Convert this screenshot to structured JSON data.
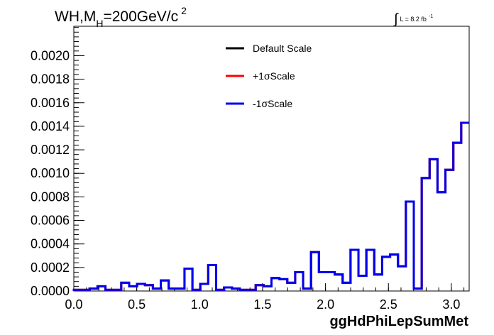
{
  "chart_data": {
    "type": "histogram",
    "title": {
      "prefix": "WH,M",
      "subscript": "H",
      "rest": "=200GeV/c",
      "superscript": "2"
    },
    "luminosity": {
      "integral_symbol": "∫",
      "text": "L = 8.2 fb",
      "superscript": "-1"
    },
    "xlabel": "ggHdPhiLepSumMet",
    "ylabel": "",
    "xlim": [
      0,
      3.1416
    ],
    "ylim": [
      0,
      0.00225
    ],
    "x_ticks": [
      "0.0",
      "0.5",
      "1.0",
      "1.5",
      "2.0",
      "2.5",
      "3.0"
    ],
    "y_ticks": [
      "0.0000",
      "0.0002",
      "0.0004",
      "0.0006",
      "0.0008",
      "0.0010",
      "0.0012",
      "0.0014",
      "0.0016",
      "0.0018",
      "0.0020"
    ],
    "bin_edges_start": 0,
    "bin_width": 0.06283,
    "n_bins": 50,
    "series": [
      {
        "name": "Default Scale",
        "color": "#000000",
        "values": [
          1e-05,
          1e-05,
          2e-05,
          4e-05,
          1e-05,
          1e-05,
          7e-05,
          4e-05,
          6e-05,
          5e-05,
          2e-05,
          9e-05,
          2e-05,
          2e-05,
          0.00019,
          1e-05,
          6e-05,
          0.00022,
          1e-05,
          3e-05,
          2e-05,
          1e-05,
          1e-05,
          5e-05,
          4e-05,
          0.00011,
          0.0001,
          7e-05,
          0.00016,
          2e-05,
          0.00033,
          0.00016,
          0.00016,
          0.00014,
          7e-05,
          0.00035,
          0.00013,
          0.00035,
          0.00014,
          0.00029,
          0.00031,
          0.00021,
          0.00076,
          2e-05,
          0.00096,
          0.00112,
          0.00084,
          0.00103,
          0.00126,
          0.00143
        ]
      },
      {
        "name": "+1σScale",
        "color": "#ff0000",
        "values": [
          1e-05,
          1e-05,
          2e-05,
          4e-05,
          1e-05,
          1e-05,
          7e-05,
          4e-05,
          6e-05,
          5e-05,
          2e-05,
          9e-05,
          2e-05,
          2e-05,
          0.00019,
          1e-05,
          6e-05,
          0.00022,
          1e-05,
          3e-05,
          2e-05,
          1e-05,
          1e-05,
          5e-05,
          4e-05,
          0.00011,
          0.0001,
          7e-05,
          0.00016,
          2e-05,
          0.00033,
          0.00016,
          0.00016,
          0.00014,
          7e-05,
          0.00035,
          0.00013,
          0.00035,
          0.00014,
          0.00029,
          0.00031,
          0.00021,
          0.00076,
          2e-05,
          0.00096,
          0.00112,
          0.00084,
          0.00103,
          0.00126,
          0.00143
        ]
      },
      {
        "name": "-1σScale",
        "color": "#0000ee",
        "values": [
          1e-05,
          1e-05,
          2e-05,
          4e-05,
          1e-05,
          1e-05,
          7e-05,
          4e-05,
          6e-05,
          5e-05,
          2e-05,
          9e-05,
          2e-05,
          2e-05,
          0.00019,
          1e-05,
          6e-05,
          0.00022,
          1e-05,
          3e-05,
          2e-05,
          1e-05,
          1e-05,
          5e-05,
          4e-05,
          0.00011,
          0.0001,
          7e-05,
          0.00016,
          2e-05,
          0.00033,
          0.00016,
          0.00016,
          0.00014,
          7e-05,
          0.00035,
          0.00013,
          0.00035,
          0.00014,
          0.00029,
          0.00031,
          0.00021,
          0.00076,
          2e-05,
          0.00096,
          0.00112,
          0.00084,
          0.00103,
          0.00126,
          0.00143
        ]
      }
    ],
    "legend": {
      "position": "top-center",
      "border": false
    },
    "grid": false
  }
}
